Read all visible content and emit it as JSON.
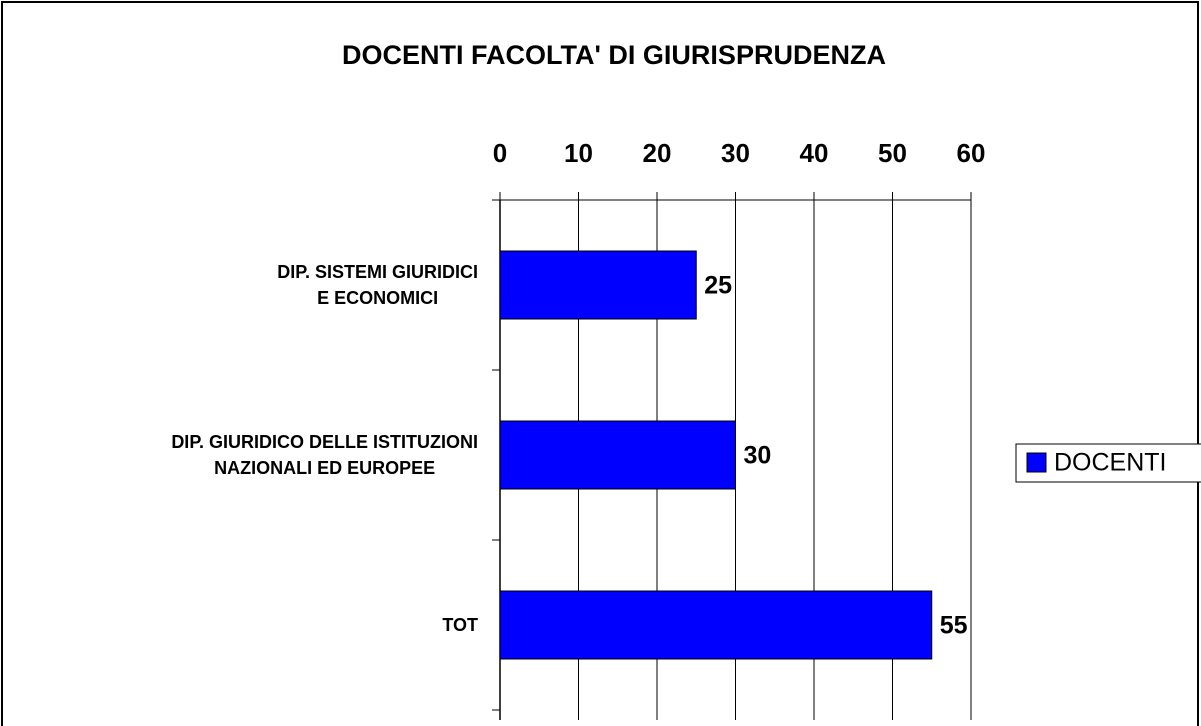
{
  "chart_data": {
    "type": "bar",
    "orientation": "horizontal",
    "title": "DOCENTI FACOLTA' DI GIURISPRUDENZA",
    "categories": [
      "DIP. SISTEMI GIURIDICI\nE ECONOMICI",
      "DIP. GIURIDICO DELLE ISTITUZIONI\nNAZIONALI ED EUROPEE",
      "TOT"
    ],
    "series": [
      {
        "name": "DOCENTI",
        "color": "#0000ff",
        "values": [
          25,
          30,
          55
        ]
      }
    ],
    "xlim": [
      0,
      60
    ],
    "xticks": [
      0,
      10,
      20,
      30,
      40,
      50,
      60
    ],
    "grid": true,
    "legend": "right",
    "data_labels": true
  }
}
